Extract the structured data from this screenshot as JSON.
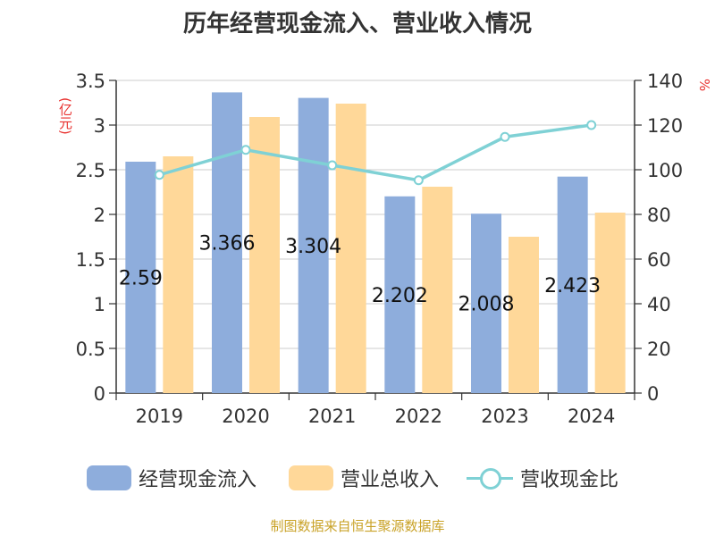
{
  "title": "历年经营现金流入、营业收入情况",
  "source": "制图数据来自恒生聚源数据库",
  "colors": {
    "inflow": "#8eaddc",
    "revenue": "#ffd899",
    "ratio": "#7fd1d5",
    "unit_label": "#e8312f",
    "source_text": "#c9a227",
    "text": "#333333",
    "grid": "#cccccc"
  },
  "chart_data": {
    "type": "bar",
    "title": "历年经营现金流入、营业收入情况",
    "categories": [
      "2019",
      "2020",
      "2021",
      "2022",
      "2023",
      "2024"
    ],
    "ylabel_left": "(亿元)",
    "ylabel_right": "%",
    "ylim_left": [
      0,
      3.5
    ],
    "ylim_right": [
      0,
      140
    ],
    "yticks_left": [
      "0",
      "0.5",
      "1",
      "1.5",
      "2",
      "2.5",
      "3",
      "3.5"
    ],
    "yticks_right": [
      "0",
      "20",
      "40",
      "60",
      "80",
      "100",
      "120",
      "140"
    ],
    "grid": true,
    "legend_position": "bottom",
    "series": [
      {
        "name": "经营现金流入",
        "type": "bar",
        "axis": "left",
        "values": [
          2.59,
          3.366,
          3.304,
          2.202,
          2.008,
          2.423
        ],
        "labels": [
          "2.59",
          "3.366",
          "3.304",
          "2.202",
          "2.008",
          "2.423"
        ]
      },
      {
        "name": "营业总收入",
        "type": "bar",
        "axis": "left",
        "values": [
          2.65,
          3.09,
          3.24,
          2.31,
          1.75,
          2.02
        ]
      },
      {
        "name": "营收现金比",
        "type": "line",
        "axis": "right",
        "values": [
          97.7,
          108.9,
          102.0,
          95.3,
          114.7,
          120.0
        ]
      }
    ]
  }
}
